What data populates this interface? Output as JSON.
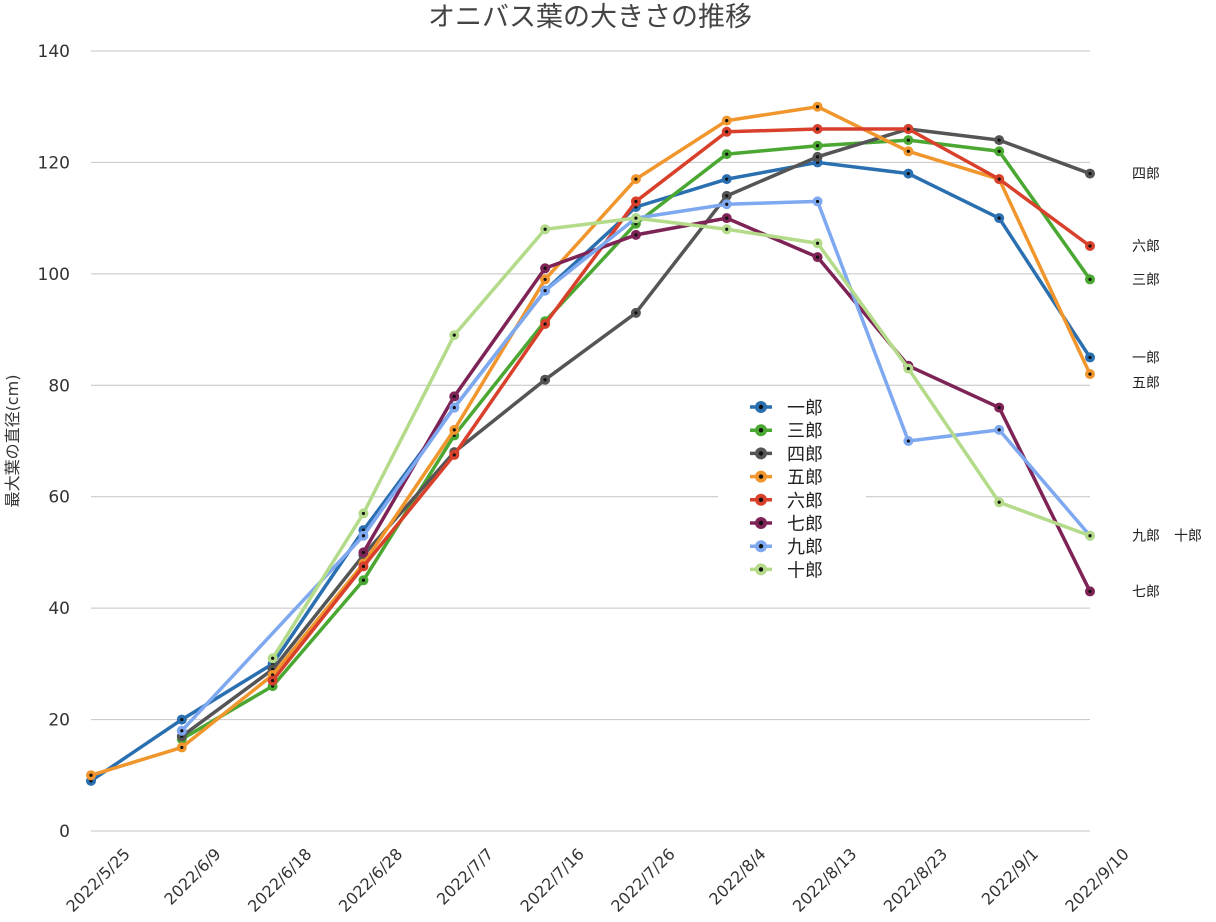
{
  "chart_data": {
    "type": "line",
    "title": "オニバス葉の大きさの推移",
    "xlabel": "",
    "ylabel": "最大葉の直径(cm)",
    "ylim": [
      0,
      140
    ],
    "y_ticks": [
      "0",
      "20",
      "40",
      "60",
      "80",
      "100",
      "120",
      "140"
    ],
    "categories": [
      "2022/5/25",
      "2022/6/9",
      "2022/6/18",
      "2022/6/28",
      "2022/7/7",
      "2022/7/16",
      "2022/7/26",
      "2022/8/4",
      "2022/8/13",
      "2022/8/23",
      "2022/9/1",
      "2022/9/10"
    ],
    "grid": true,
    "legend_position": "center-right",
    "series": [
      {
        "name": "一郎",
        "color": "#2a6fb0",
        "values": [
          9,
          20,
          30,
          54,
          76,
          97,
          112,
          117,
          120,
          118,
          110,
          85
        ]
      },
      {
        "name": "三郎",
        "color": "#4aa832",
        "values": [
          null,
          16.5,
          26,
          45,
          71,
          91.5,
          109,
          121.5,
          123,
          124,
          122,
          99
        ]
      },
      {
        "name": "四郎",
        "color": "#555555",
        "values": [
          null,
          17,
          29,
          49.5,
          68,
          81,
          93,
          114,
          121,
          126,
          124,
          118
        ]
      },
      {
        "name": "五郎",
        "color": "#f0962d",
        "values": [
          10,
          15,
          28,
          48,
          72,
          99,
          117,
          127.5,
          130,
          122,
          117,
          82
        ]
      },
      {
        "name": "六郎",
        "color": "#d9402b",
        "values": [
          null,
          null,
          27,
          47.5,
          67.5,
          91,
          113,
          125.5,
          126,
          126,
          117,
          105
        ]
      },
      {
        "name": "七郎",
        "color": "#7e2356",
        "values": [
          null,
          null,
          null,
          50,
          78,
          101,
          107,
          110,
          103,
          83.5,
          76,
          43
        ]
      },
      {
        "name": "九郎",
        "color": "#7ea8f0",
        "values": [
          null,
          18,
          null,
          53,
          76,
          97,
          110,
          112.5,
          113,
          70,
          72,
          53
        ]
      },
      {
        "name": "十郎",
        "color": "#b3db8a",
        "values": [
          null,
          null,
          31,
          57,
          89,
          108,
          110,
          108,
          105.5,
          83,
          59,
          53
        ]
      }
    ],
    "end_labels": [
      {
        "text": "四郎",
        "value": 118
      },
      {
        "text": "六郎",
        "value": 105
      },
      {
        "text": "三郎",
        "value": 99
      },
      {
        "text": "一郎",
        "value": 85
      },
      {
        "text": "五郎",
        "value": 80.5
      },
      {
        "text": "九郎　十郎",
        "value": 53
      },
      {
        "text": "七郎",
        "value": 43
      }
    ]
  }
}
